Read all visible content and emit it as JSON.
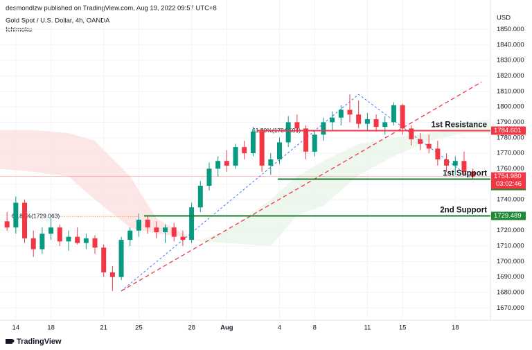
{
  "header": {
    "published": "desmondlzw published on TradingView.com, Aug 19, 2022 09:57 UTC+8",
    "brand": "TradingView"
  },
  "chart_data": {
    "type": "candlestick",
    "title": "Gold Spot / U.S. Dollar, 4h, OANDA",
    "subtitle": "Ichimoku",
    "y_unit": "USD",
    "up_color": "#089981",
    "down_color": "#f23645",
    "xlim": [
      -0.9,
      27
    ],
    "ylim": [
      1663,
      1869
    ],
    "xticks": [
      {
        "value": 0,
        "label": "14"
      },
      {
        "value": 2,
        "label": "18"
      },
      {
        "value": 5,
        "label": "21"
      },
      {
        "value": 7,
        "label": "25"
      },
      {
        "value": 10,
        "label": "28"
      },
      {
        "value": 12,
        "label": "Aug"
      },
      {
        "value": 15,
        "label": "4"
      },
      {
        "value": 17,
        "label": "8"
      },
      {
        "value": 20,
        "label": "11"
      },
      {
        "value": 22,
        "label": "15"
      },
      {
        "value": 25,
        "label": "18"
      }
    ],
    "yticks": [
      {
        "value": 1670,
        "label": "1670.000"
      },
      {
        "value": 1680,
        "label": "1680.000"
      },
      {
        "value": 1690,
        "label": "1690.000"
      },
      {
        "value": 1700,
        "label": "1700.000"
      },
      {
        "value": 1710,
        "label": "1710.000"
      },
      {
        "value": 1720,
        "label": "1720.000"
      },
      {
        "value": 1730,
        "label": "1730.000"
      },
      {
        "value": 1740,
        "label": "1740.000"
      },
      {
        "value": 1750,
        "label": "1750.000"
      },
      {
        "value": 1760,
        "label": "1760.000"
      },
      {
        "value": 1770,
        "label": "1770.000"
      },
      {
        "value": 1780,
        "label": "1780.000"
      },
      {
        "value": 1790,
        "label": "1790.000"
      },
      {
        "value": 1800,
        "label": "1800.000"
      },
      {
        "value": 1810,
        "label": "1810.000"
      },
      {
        "value": 1820,
        "label": "1820.000"
      },
      {
        "value": 1830,
        "label": "1830.000"
      },
      {
        "value": 1840,
        "label": "1840.000"
      },
      {
        "value": 1850,
        "label": "1850.000"
      }
    ],
    "x": [
      -0.5,
      0,
      0.5,
      1,
      1.5,
      2,
      2.5,
      3,
      3.5,
      4,
      4.5,
      5,
      5.5,
      6,
      6.5,
      7,
      7.5,
      8,
      8.5,
      9,
      9.5,
      10,
      10.5,
      11,
      11.5,
      12,
      12.5,
      13,
      13.5,
      14,
      14.5,
      15,
      15.5,
      16,
      16.5,
      17,
      17.5,
      18,
      18.5,
      19,
      19.5,
      20,
      20.5,
      21,
      21.5,
      22,
      22.5,
      23,
      23.5,
      24,
      24.5,
      25,
      25.5,
      26
    ],
    "open": [
      1726,
      1722,
      1738,
      1715,
      1708,
      1718,
      1722,
      1713,
      1716,
      1712,
      1715,
      1709,
      1693,
      1690,
      1714,
      1720,
      1727,
      1722,
      1719,
      1722,
      1716,
      1714,
      1735,
      1749,
      1760,
      1765,
      1762,
      1774,
      1770,
      1784,
      1762,
      1766,
      1777,
      1790,
      1786,
      1771,
      1782,
      1790,
      1793,
      1798,
      1795,
      1789,
      1792,
      1787,
      1790,
      1801,
      1786,
      1779,
      1776,
      1773,
      1766,
      1762,
      1765,
      1758
    ],
    "high": [
      1732,
      1742,
      1740,
      1720,
      1722,
      1728,
      1724,
      1720,
      1722,
      1718,
      1717,
      1711,
      1697,
      1716,
      1722,
      1731,
      1730,
      1726,
      1724,
      1725,
      1720,
      1738,
      1752,
      1764,
      1768,
      1772,
      1776,
      1778,
      1787,
      1786,
      1770,
      1780,
      1794,
      1795,
      1788,
      1784,
      1793,
      1797,
      1801,
      1808,
      1804,
      1796,
      1795,
      1794,
      1803,
      1802,
      1788,
      1783,
      1782,
      1778,
      1770,
      1768,
      1771,
      1760
    ],
    "low": [
      1720,
      1718,
      1712,
      1703,
      1705,
      1714,
      1710,
      1707,
      1711,
      1708,
      1705,
      1690,
      1681,
      1688,
      1710,
      1716,
      1718,
      1715,
      1712,
      1713,
      1710,
      1712,
      1732,
      1746,
      1755,
      1758,
      1760,
      1766,
      1768,
      1758,
      1756,
      1763,
      1774,
      1783,
      1766,
      1768,
      1778,
      1785,
      1788,
      1790,
      1786,
      1785,
      1784,
      1782,
      1788,
      1782,
      1775,
      1772,
      1770,
      1762,
      1758,
      1756,
      1756,
      1753
    ],
    "close": [
      1722,
      1738,
      1715,
      1708,
      1718,
      1722,
      1713,
      1716,
      1712,
      1715,
      1709,
      1693,
      1690,
      1714,
      1720,
      1727,
      1722,
      1719,
      1722,
      1716,
      1714,
      1735,
      1749,
      1760,
      1765,
      1762,
      1774,
      1770,
      1784,
      1762,
      1766,
      1777,
      1790,
      1786,
      1771,
      1782,
      1790,
      1793,
      1798,
      1795,
      1789,
      1792,
      1787,
      1790,
      1801,
      1786,
      1779,
      1776,
      1773,
      1766,
      1762,
      1765,
      1758,
      1754.98
    ],
    "cloud": {
      "up_color": "#e8f5e9",
      "down_color": "#fde0e0",
      "x": [
        -0.9,
        1,
        3,
        4.5,
        6.5,
        8,
        9.5,
        10.5,
        12,
        14.5,
        16,
        17.5,
        19.5,
        21.5,
        23.5,
        25.5,
        27
      ],
      "span_a": [
        1760,
        1758,
        1755,
        1740,
        1722,
        1718,
        1716,
        1714,
        1720,
        1740,
        1755,
        1765,
        1776,
        1780,
        1783,
        1790,
        1792
      ],
      "span_b": [
        1785,
        1785,
        1783,
        1778,
        1755,
        1728,
        1718,
        1713,
        1712,
        1710,
        1730,
        1736,
        1756,
        1768,
        1778,
        1783,
        1783
      ]
    },
    "trendlines": [
      {
        "color": "#f23645",
        "points": [
          [
            6,
            1681
          ],
          [
            26.5,
            1816
          ]
        ]
      },
      {
        "color": "#2962ff",
        "points": [
          [
            6,
            1681
          ],
          [
            19.5,
            1808
          ],
          [
            26,
            1753
          ]
        ]
      }
    ],
    "fibs": [
      {
        "label": "61.80%(1729.063)",
        "value": 1729.063,
        "start": 2.5,
        "end": 7
      },
      {
        "label": "61.80%(1784.504)",
        "value": 1784.504,
        "start": 16.2,
        "end": 18.5
      }
    ],
    "levels": [
      {
        "name": "1st Resistance",
        "value": 1784.601,
        "start": 13.7,
        "color": "#f23645",
        "label_color": "#f57c5b",
        "box_color": "#f23645"
      },
      {
        "name": "1st Support",
        "value": 1753.221,
        "start": 14.9,
        "color": "#1b7d2e",
        "label_color": "#1b7d2e",
        "box_color": "#1e8a35"
      },
      {
        "name": "2nd Support",
        "value": 1729.489,
        "start": 7.3,
        "color": "#1b7d2e",
        "label_color": "#1b7d2e",
        "box_color": "#1e8a35"
      }
    ],
    "last_price": {
      "value": 1754.98,
      "value_label": "1754.980",
      "countdown": "03:02:46",
      "color": "#f23645"
    }
  }
}
